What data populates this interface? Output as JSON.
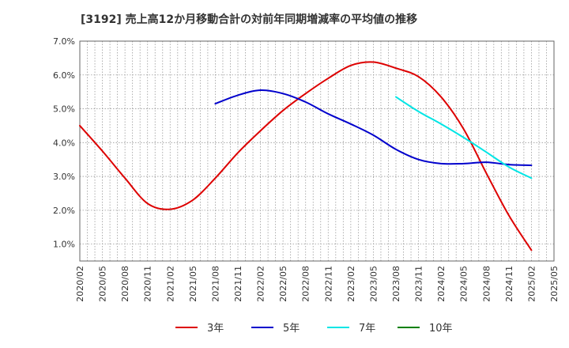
{
  "chart_data": {
    "type": "line",
    "title": "[3192]  売上高12か月移動合計の対前年同期増減率の平均値の推移",
    "xlabel": "",
    "ylabel": "",
    "x_ticks": [
      "2020/02",
      "2020/05",
      "2020/08",
      "2020/11",
      "2021/02",
      "2021/05",
      "2021/08",
      "2021/11",
      "2022/02",
      "2022/05",
      "2022/08",
      "2022/11",
      "2023/02",
      "2023/05",
      "2023/08",
      "2023/11",
      "2024/02",
      "2024/05",
      "2024/08",
      "2024/11",
      "2025/02",
      "2025/05"
    ],
    "y_ticks": [
      "1.0%",
      "2.0%",
      "3.0%",
      "4.0%",
      "5.0%",
      "6.0%",
      "7.0%"
    ],
    "ylim": [
      0.5,
      7.0
    ],
    "grid": true,
    "legend_position": "bottom",
    "series": [
      {
        "name": "3年",
        "color": "#dd0000",
        "points": [
          [
            "2020/02",
            4.5
          ],
          [
            "2020/05",
            3.75
          ],
          [
            "2020/08",
            2.95
          ],
          [
            "2020/11",
            2.2
          ],
          [
            "2021/02",
            2.03
          ],
          [
            "2021/05",
            2.3
          ],
          [
            "2021/08",
            2.95
          ],
          [
            "2021/11",
            3.7
          ],
          [
            "2022/02",
            4.35
          ],
          [
            "2022/05",
            4.95
          ],
          [
            "2022/08",
            5.45
          ],
          [
            "2022/11",
            5.9
          ],
          [
            "2023/02",
            6.28
          ],
          [
            "2023/05",
            6.38
          ],
          [
            "2023/08",
            6.2
          ],
          [
            "2023/11",
            5.95
          ],
          [
            "2024/02",
            5.35
          ],
          [
            "2024/05",
            4.4
          ],
          [
            "2024/08",
            3.1
          ],
          [
            "2024/11",
            1.85
          ],
          [
            "2025/02",
            0.82
          ]
        ]
      },
      {
        "name": "5年",
        "color": "#0000cc",
        "points": [
          [
            "2021/08",
            5.15
          ],
          [
            "2021/11",
            5.4
          ],
          [
            "2022/02",
            5.55
          ],
          [
            "2022/05",
            5.45
          ],
          [
            "2022/08",
            5.2
          ],
          [
            "2022/11",
            4.85
          ],
          [
            "2023/02",
            4.55
          ],
          [
            "2023/05",
            4.22
          ],
          [
            "2023/08",
            3.8
          ],
          [
            "2023/11",
            3.5
          ],
          [
            "2024/02",
            3.38
          ],
          [
            "2024/05",
            3.38
          ],
          [
            "2024/08",
            3.42
          ],
          [
            "2024/11",
            3.35
          ],
          [
            "2025/02",
            3.33
          ]
        ]
      },
      {
        "name": "7年",
        "color": "#00e5e5",
        "points": [
          [
            "2023/08",
            5.35
          ],
          [
            "2023/11",
            4.92
          ],
          [
            "2024/02",
            4.55
          ],
          [
            "2024/05",
            4.15
          ],
          [
            "2024/08",
            3.72
          ],
          [
            "2024/11",
            3.28
          ],
          [
            "2025/02",
            2.95
          ]
        ]
      },
      {
        "name": "10年",
        "color": "#008000",
        "points": []
      }
    ]
  }
}
